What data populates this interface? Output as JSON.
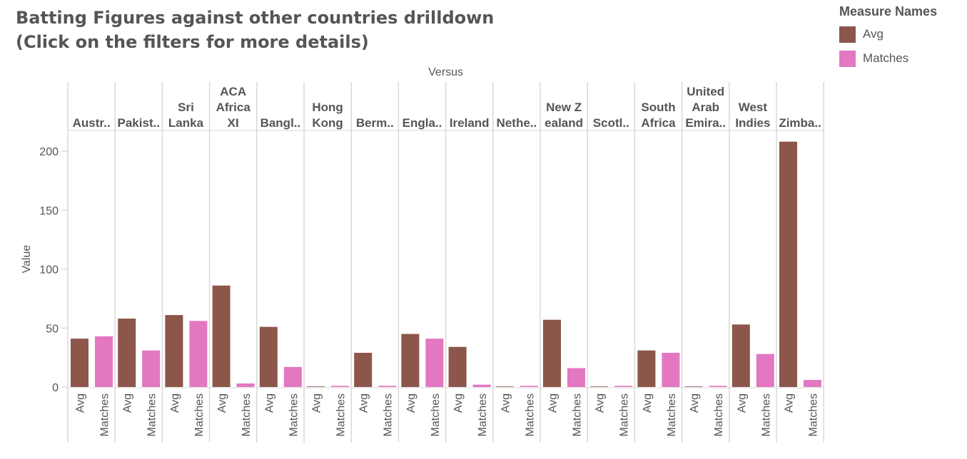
{
  "title_lines": [
    "Batting Figures against other countries drilldown",
    "(Click on the filters for more details)"
  ],
  "legend": {
    "title": "Measure Names",
    "items": [
      {
        "label": "Avg",
        "color": "#8c564b"
      },
      {
        "label": "Matches",
        "color": "#e377c2"
      }
    ]
  },
  "chart_data": {
    "type": "bar",
    "column_header": "Versus",
    "ylabel": "Value",
    "ylim": [
      0,
      220
    ],
    "yticks": [
      0,
      50,
      100,
      150,
      200
    ],
    "measures": [
      "Avg",
      "Matches"
    ],
    "colors": {
      "Avg": "#8c564b",
      "Matches": "#e377c2"
    },
    "categories": [
      {
        "label": [
          "Austr.."
        ],
        "values": [
          41,
          43
        ]
      },
      {
        "label": [
          "Pakist.."
        ],
        "values": [
          58,
          31
        ]
      },
      {
        "label": [
          "Sri",
          "Lanka"
        ],
        "values": [
          61,
          56
        ]
      },
      {
        "label": [
          "ACA",
          "Africa",
          "XI"
        ],
        "values": [
          86,
          3
        ]
      },
      {
        "label": [
          "Bangl.."
        ],
        "values": [
          51,
          17
        ]
      },
      {
        "label": [
          "Hong",
          "Kong"
        ],
        "values": [
          0,
          1
        ]
      },
      {
        "label": [
          "Berm.."
        ],
        "values": [
          29,
          1
        ]
      },
      {
        "label": [
          "Engla.."
        ],
        "values": [
          45,
          41
        ]
      },
      {
        "label": [
          "Ireland"
        ],
        "values": [
          34,
          2
        ]
      },
      {
        "label": [
          "Nethe.."
        ],
        "values": [
          0,
          1
        ]
      },
      {
        "label": [
          "New Z",
          "ealand"
        ],
        "values": [
          57,
          16
        ]
      },
      {
        "label": [
          "Scotl.."
        ],
        "values": [
          0,
          1
        ]
      },
      {
        "label": [
          "South",
          "Africa"
        ],
        "values": [
          31,
          29
        ]
      },
      {
        "label": [
          "United",
          "Arab",
          "Emira.."
        ],
        "values": [
          0,
          1
        ]
      },
      {
        "label": [
          "West",
          "Indies"
        ],
        "values": [
          53,
          28
        ]
      },
      {
        "label": [
          "Zimba.."
        ],
        "values": [
          208,
          6
        ]
      }
    ]
  }
}
